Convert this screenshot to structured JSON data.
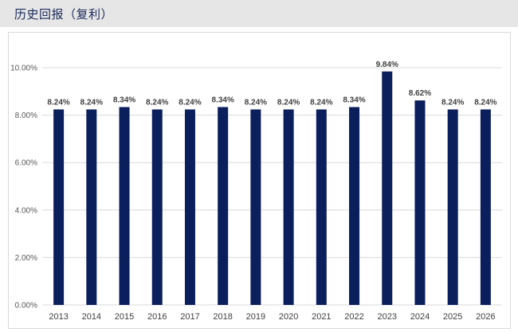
{
  "header": {
    "title": "历史回报（复利）"
  },
  "colors": {
    "bar": "#0b1f5c",
    "grid": "#d9d9d9",
    "header_bg": "#e6e6e6"
  },
  "chart_data": {
    "type": "bar",
    "title": "",
    "xlabel": "",
    "ylabel": "",
    "categories": [
      "2013",
      "2014",
      "2015",
      "2016",
      "2017",
      "2018",
      "2019",
      "2020",
      "2021",
      "2022",
      "2023",
      "2024",
      "2025",
      "2026"
    ],
    "values": [
      8.24,
      8.24,
      8.34,
      8.24,
      8.24,
      8.34,
      8.24,
      8.24,
      8.24,
      8.34,
      9.84,
      8.62,
      8.24,
      8.24
    ],
    "data_labels": [
      "8.24%",
      "8.24%",
      "8.34%",
      "8.24%",
      "8.24%",
      "8.34%",
      "8.24%",
      "8.24%",
      "8.24%",
      "8.34%",
      "9.84%",
      "8.62%",
      "8.24%",
      "8.24%"
    ],
    "ylim": [
      0,
      10
    ],
    "yticks": [
      0,
      2,
      4,
      6,
      8,
      10
    ],
    "ytick_labels": [
      "0.00%",
      "2.00%",
      "4.00%",
      "6.00%",
      "8.00%",
      "10.00%"
    ],
    "grid": true,
    "legend": "none"
  }
}
